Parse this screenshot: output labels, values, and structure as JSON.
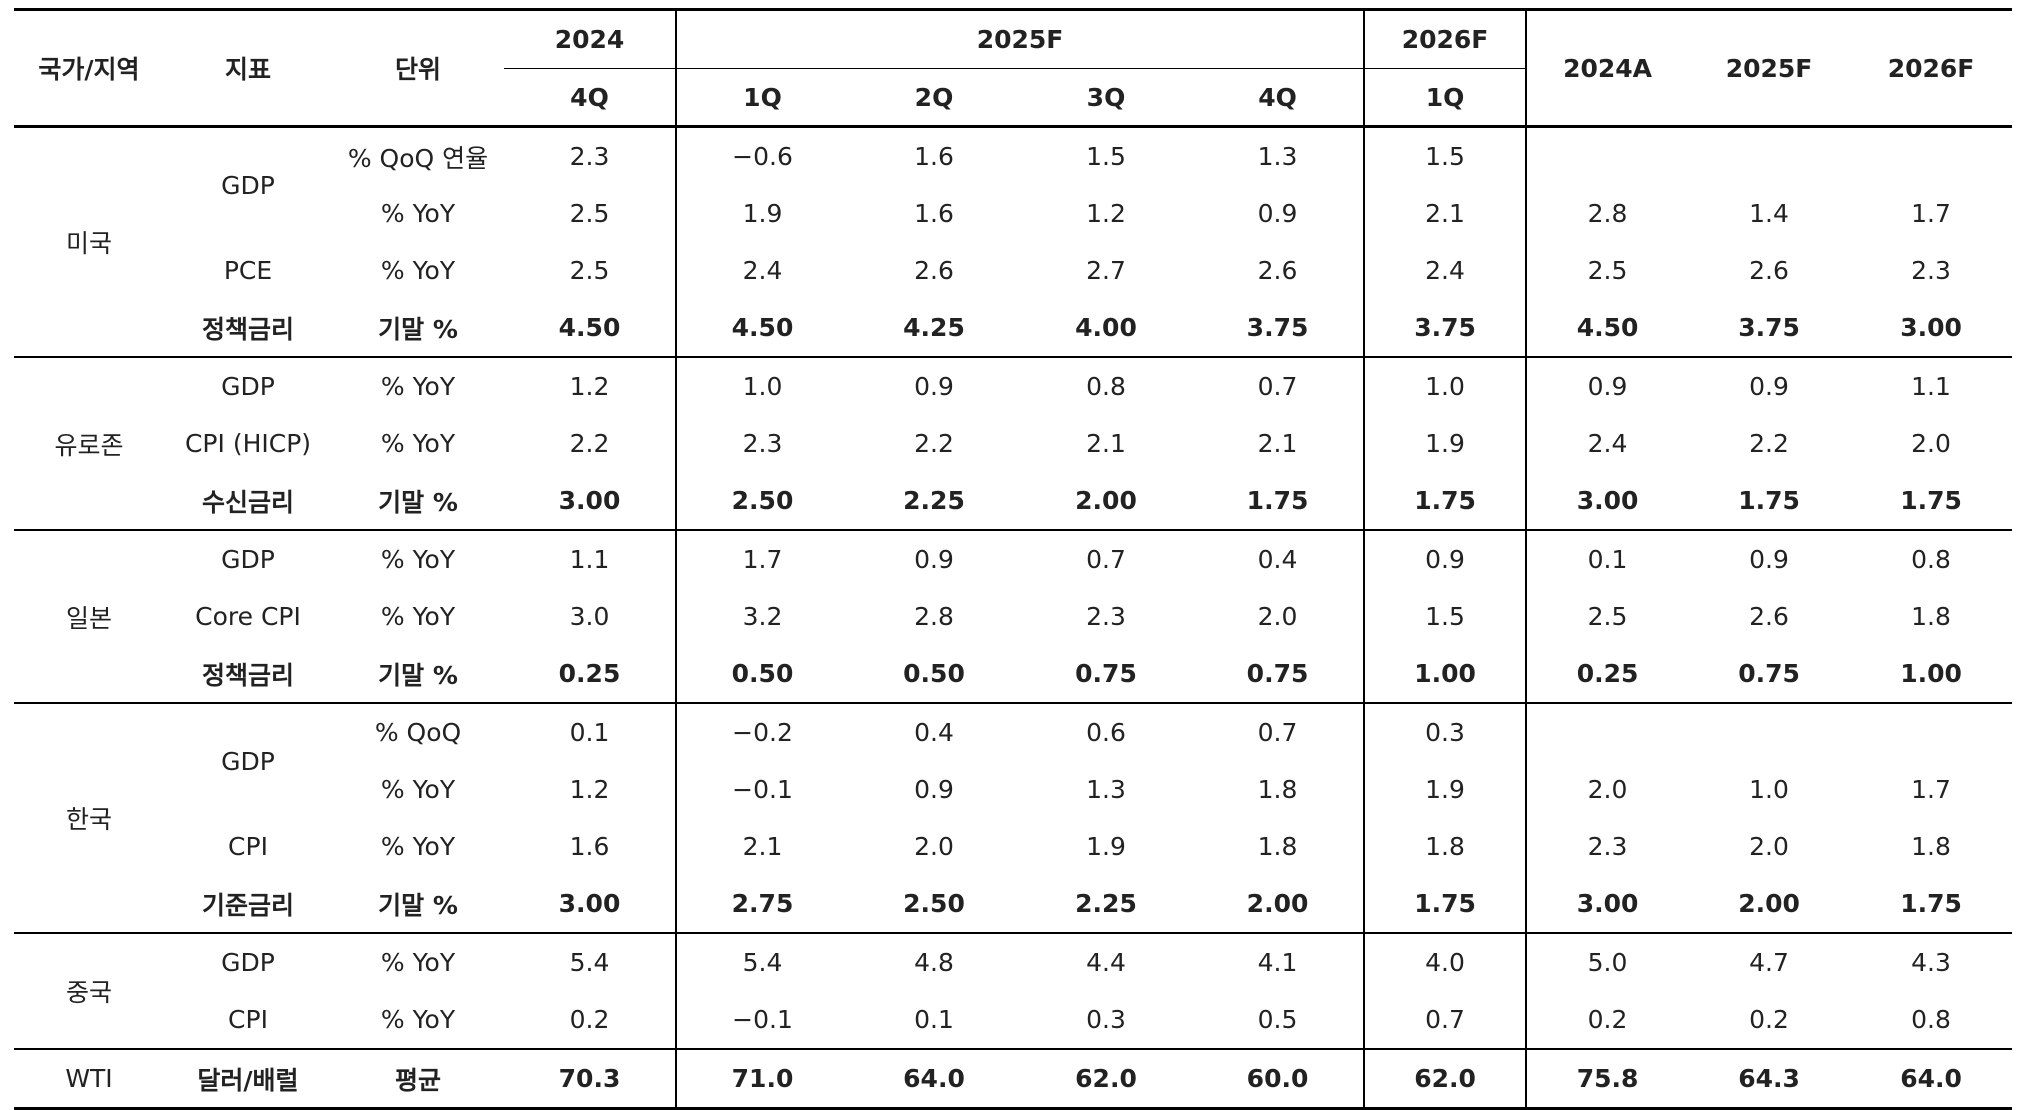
{
  "header": {
    "country": "국가/지역",
    "indicator": "지표",
    "unit": "단위",
    "y2024": "2024",
    "y2025f": "2025F",
    "y2026f": "2026F",
    "q": [
      "4Q",
      "1Q",
      "2Q",
      "3Q",
      "4Q",
      "1Q"
    ],
    "annual": [
      "2024A",
      "2025F",
      "2026F"
    ]
  },
  "regions": {
    "us": "미국",
    "ez": "유로존",
    "jp": "일본",
    "kr": "한국",
    "cn": "중국",
    "wti": "WTI"
  },
  "rows": [
    {
      "indicator": "GDP",
      "unit": "% QoQ 연율",
      "q": [
        "2.3",
        "−0.6",
        "1.6",
        "1.5",
        "1.3",
        "1.5"
      ],
      "a": [
        "",
        "",
        ""
      ]
    },
    {
      "indicator": "",
      "unit": "% YoY",
      "q": [
        "2.5",
        "1.9",
        "1.6",
        "1.2",
        "0.9",
        "2.1"
      ],
      "a": [
        "2.8",
        "1.4",
        "1.7"
      ]
    },
    {
      "indicator": "PCE",
      "unit": "% YoY",
      "q": [
        "2.5",
        "2.4",
        "2.6",
        "2.7",
        "2.6",
        "2.4"
      ],
      "a": [
        "2.5",
        "2.6",
        "2.3"
      ]
    },
    {
      "indicator": "정책금리",
      "unit": "기말 %",
      "q": [
        "4.50",
        "4.50",
        "4.25",
        "4.00",
        "3.75",
        "3.75"
      ],
      "a": [
        "4.50",
        "3.75",
        "3.00"
      ]
    },
    {
      "indicator": "GDP",
      "unit": "% YoY",
      "q": [
        "1.2",
        "1.0",
        "0.9",
        "0.8",
        "0.7",
        "1.0"
      ],
      "a": [
        "0.9",
        "0.9",
        "1.1"
      ]
    },
    {
      "indicator": "CPI (HICP)",
      "unit": "% YoY",
      "q": [
        "2.2",
        "2.3",
        "2.2",
        "2.1",
        "2.1",
        "1.9"
      ],
      "a": [
        "2.4",
        "2.2",
        "2.0"
      ]
    },
    {
      "indicator": "수신금리",
      "unit": "기말 %",
      "q": [
        "3.00",
        "2.50",
        "2.25",
        "2.00",
        "1.75",
        "1.75"
      ],
      "a": [
        "3.00",
        "1.75",
        "1.75"
      ]
    },
    {
      "indicator": "GDP",
      "unit": "% YoY",
      "q": [
        "1.1",
        "1.7",
        "0.9",
        "0.7",
        "0.4",
        "0.9"
      ],
      "a": [
        "0.1",
        "0.9",
        "0.8"
      ]
    },
    {
      "indicator": "Core CPI",
      "unit": "% YoY",
      "q": [
        "3.0",
        "3.2",
        "2.8",
        "2.3",
        "2.0",
        "1.5"
      ],
      "a": [
        "2.5",
        "2.6",
        "1.8"
      ]
    },
    {
      "indicator": "정책금리",
      "unit": "기말 %",
      "q": [
        "0.25",
        "0.50",
        "0.50",
        "0.75",
        "0.75",
        "1.00"
      ],
      "a": [
        "0.25",
        "0.75",
        "1.00"
      ]
    },
    {
      "indicator": "GDP",
      "unit": "% QoQ",
      "q": [
        "0.1",
        "−0.2",
        "0.4",
        "0.6",
        "0.7",
        "0.3"
      ],
      "a": [
        "",
        "",
        ""
      ]
    },
    {
      "indicator": "",
      "unit": "% YoY",
      "q": [
        "1.2",
        "−0.1",
        "0.9",
        "1.3",
        "1.8",
        "1.9"
      ],
      "a": [
        "2.0",
        "1.0",
        "1.7"
      ]
    },
    {
      "indicator": "CPI",
      "unit": "% YoY",
      "q": [
        "1.6",
        "2.1",
        "2.0",
        "1.9",
        "1.8",
        "1.8"
      ],
      "a": [
        "2.3",
        "2.0",
        "1.8"
      ]
    },
    {
      "indicator": "기준금리",
      "unit": "기말 %",
      "q": [
        "3.00",
        "2.75",
        "2.50",
        "2.25",
        "2.00",
        "1.75"
      ],
      "a": [
        "3.00",
        "2.00",
        "1.75"
      ]
    },
    {
      "indicator": "GDP",
      "unit": "% YoY",
      "q": [
        "5.4",
        "5.4",
        "4.8",
        "4.4",
        "4.1",
        "4.0"
      ],
      "a": [
        "5.0",
        "4.7",
        "4.3"
      ]
    },
    {
      "indicator": "CPI",
      "unit": "% YoY",
      "q": [
        "0.2",
        "−0.1",
        "0.1",
        "0.3",
        "0.5",
        "0.7"
      ],
      "a": [
        "0.2",
        "0.2",
        "0.8"
      ]
    },
    {
      "indicator": "달러/배럴",
      "unit": "평균",
      "q": [
        "70.3",
        "71.0",
        "64.0",
        "62.0",
        "60.0",
        "62.0"
      ],
      "a": [
        "75.8",
        "64.3",
        "64.0"
      ]
    }
  ]
}
